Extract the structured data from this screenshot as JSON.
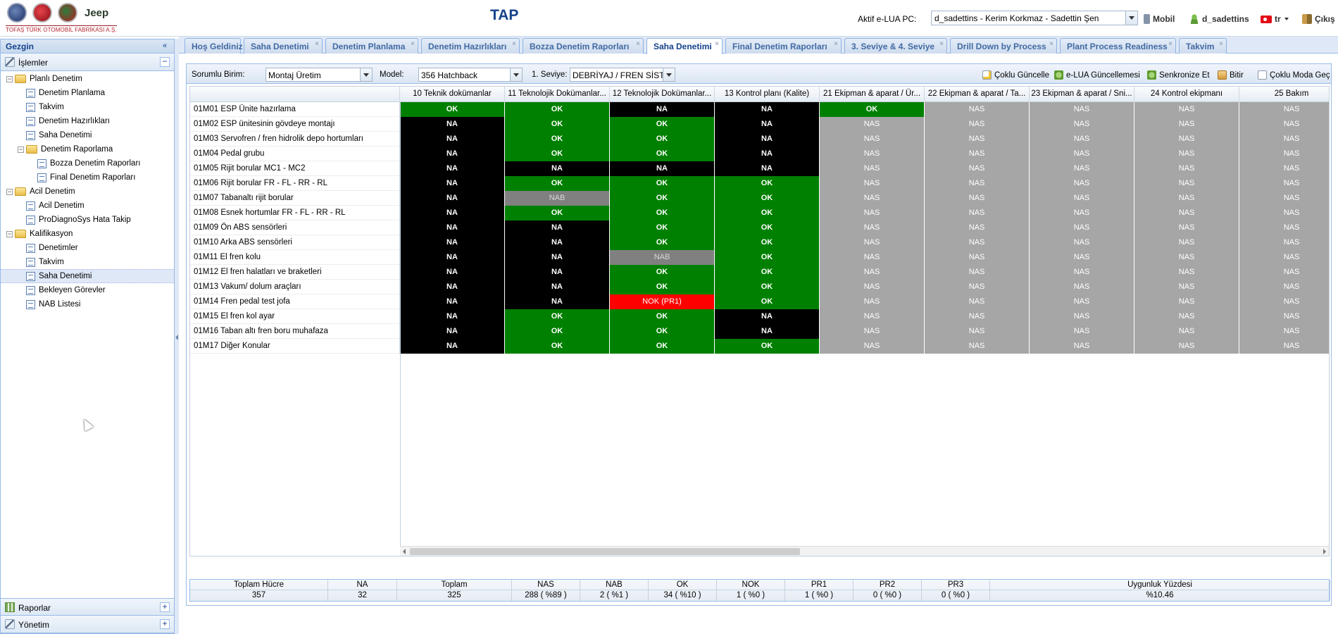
{
  "header": {
    "company": "TOFAŞ TÜRK OTOMOBİL FABRİKASI A.Ş.",
    "brand_jeep": "Jeep",
    "title": "TAP",
    "pc_label": "Aktif e-LUA PC:",
    "pc_value": "d_sadettins - Kerim Korkmaz - Sadettin Şen",
    "mobile": "Mobil",
    "user": "d_sadettins",
    "lang": "tr",
    "exit": "Çıkış"
  },
  "sidebar": {
    "title": "Gezgin",
    "section": "İşlemler",
    "tree": [
      {
        "label": "Planlı Denetim",
        "level": 0,
        "type": "folder"
      },
      {
        "label": "Denetim Planlama",
        "level": 1,
        "type": "leaf"
      },
      {
        "label": "Takvim",
        "level": 1,
        "type": "leaf"
      },
      {
        "label": "Denetim Hazırlıkları",
        "level": 1,
        "type": "leaf"
      },
      {
        "label": "Saha Denetimi",
        "level": 1,
        "type": "leaf"
      },
      {
        "label": "Denetim Raporlama",
        "level": 1,
        "type": "folder"
      },
      {
        "label": "Bozza Denetim Raporları",
        "level": 2,
        "type": "leaf"
      },
      {
        "label": "Final Denetim Raporları",
        "level": 2,
        "type": "leaf"
      },
      {
        "label": "Acil Denetim",
        "level": 0,
        "type": "folder"
      },
      {
        "label": "Acil Denetim",
        "level": 1,
        "type": "leaf"
      },
      {
        "label": "ProDiagnoSys Hata Takip",
        "level": 1,
        "type": "leaf"
      },
      {
        "label": "Kalifikasyon",
        "level": 0,
        "type": "folder"
      },
      {
        "label": "Denetimler",
        "level": 1,
        "type": "leaf"
      },
      {
        "label": "Takvim",
        "level": 1,
        "type": "leaf"
      },
      {
        "label": "Saha Denetimi",
        "level": 1,
        "type": "leaf",
        "selected": true
      },
      {
        "label": "Bekleyen Görevler",
        "level": 1,
        "type": "leaf"
      },
      {
        "label": "NAB Listesi",
        "level": 1,
        "type": "leaf"
      }
    ],
    "bottom": [
      "Raporlar",
      "Yönetim"
    ]
  },
  "tabs": [
    {
      "label": "Hoş Geldiniz",
      "closable": false
    },
    {
      "label": "Saha Denetimi",
      "closable": true
    },
    {
      "label": "Denetim Planlama",
      "closable": true
    },
    {
      "label": "Denetim Hazırlıkları",
      "closable": true
    },
    {
      "label": "Bozza Denetim Raporları",
      "closable": true
    },
    {
      "label": "Saha Denetimi",
      "closable": true,
      "active": true
    },
    {
      "label": "Final Denetim Raporları",
      "closable": true
    },
    {
      "label": "3. Seviye & 4. Seviye",
      "closable": true
    },
    {
      "label": "Drill Down by Process",
      "closable": true
    },
    {
      "label": "Plant Process Readiness",
      "closable": true
    },
    {
      "label": "Takvim",
      "closable": true
    }
  ],
  "toolbar": {
    "unit_label": "Sorumlu Birim:",
    "unit_value": "Montaj Üretim",
    "model_label": "Model:",
    "model_value": "356 Hatchback",
    "level_label": "1. Seviye:",
    "level_value": "DEBRİYAJ / FREN SİSTEMİ",
    "buttons": [
      "Çoklu Güncelle",
      "e-LUA Güncellemesi",
      "Senkronize Et",
      "Bitir",
      "Çoklu Moda Geç"
    ]
  },
  "grid": {
    "columns": [
      "10 Teknik dokümanlar",
      "11 Teknolojik Dokümanlar...",
      "12 Teknolojik Dokümanlar...",
      "13 Kontrol planı (Kalite)",
      "21 Ekipman & aparat / Ür...",
      "22 Ekipman & aparat / Ta...",
      "23 Ekipman & aparat / Sni...",
      "24 Kontrol ekipmanı",
      "25 Bakım"
    ],
    "rows": [
      {
        "label": "01M01 ESP Ünite hazırlama",
        "cells": [
          "OK",
          "OK",
          "NA",
          "NA",
          "OK",
          "NAS",
          "NAS",
          "NAS",
          "NAS"
        ]
      },
      {
        "label": "01M02 ESP ünitesinin gövdeye montajı",
        "cells": [
          "NA",
          "OK",
          "OK",
          "NA",
          "NAS",
          "NAS",
          "NAS",
          "NAS",
          "NAS"
        ]
      },
      {
        "label": "01M03 Servofren / fren hidrolik depo hortumları",
        "cells": [
          "NA",
          "OK",
          "OK",
          "NA",
          "NAS",
          "NAS",
          "NAS",
          "NAS",
          "NAS"
        ]
      },
      {
        "label": "01M04 Pedal grubu",
        "cells": [
          "NA",
          "OK",
          "OK",
          "NA",
          "NAS",
          "NAS",
          "NAS",
          "NAS",
          "NAS"
        ]
      },
      {
        "label": "01M05 Rijit borular MC1 - MC2",
        "cells": [
          "NA",
          "NA",
          "NA",
          "NA",
          "NAS",
          "NAS",
          "NAS",
          "NAS",
          "NAS"
        ]
      },
      {
        "label": "01M06 Rijit borular FR - FL - RR - RL",
        "cells": [
          "NA",
          "OK",
          "OK",
          "OK",
          "NAS",
          "NAS",
          "NAS",
          "NAS",
          "NAS"
        ]
      },
      {
        "label": "01M07 Tabanaltı rijit borular",
        "cells": [
          "NA",
          "NAB",
          "OK",
          "OK",
          "NAS",
          "NAS",
          "NAS",
          "NAS",
          "NAS"
        ]
      },
      {
        "label": "01M08 Esnek hortumlar FR - FL - RR - RL",
        "cells": [
          "NA",
          "OK",
          "OK",
          "OK",
          "NAS",
          "NAS",
          "NAS",
          "NAS",
          "NAS"
        ]
      },
      {
        "label": "01M09 Ön ABS sensörleri",
        "cells": [
          "NA",
          "NA",
          "OK",
          "OK",
          "NAS",
          "NAS",
          "NAS",
          "NAS",
          "NAS"
        ]
      },
      {
        "label": "01M10 Arka ABS sensörleri",
        "cells": [
          "NA",
          "NA",
          "OK",
          "OK",
          "NAS",
          "NAS",
          "NAS",
          "NAS",
          "NAS"
        ]
      },
      {
        "label": "01M11 El fren kolu",
        "cells": [
          "NA",
          "NA",
          "NAB",
          "OK",
          "NAS",
          "NAS",
          "NAS",
          "NAS",
          "NAS"
        ]
      },
      {
        "label": "01M12 El fren halatları ve braketleri",
        "cells": [
          "NA",
          "NA",
          "OK",
          "OK",
          "NAS",
          "NAS",
          "NAS",
          "NAS",
          "NAS"
        ]
      },
      {
        "label": "01M13 Vakum/ dolum araçları",
        "cells": [
          "NA",
          "NA",
          "OK",
          "OK",
          "NAS",
          "NAS",
          "NAS",
          "NAS",
          "NAS"
        ]
      },
      {
        "label": "01M14 Fren pedal test jofa",
        "cells": [
          "NA",
          "NA",
          "NOK (PR1)",
          "OK",
          "NAS",
          "NAS",
          "NAS",
          "NAS",
          "NAS"
        ]
      },
      {
        "label": "01M15 El fren kol ayar",
        "cells": [
          "NA",
          "OK",
          "OK",
          "NA",
          "NAS",
          "NAS",
          "NAS",
          "NAS",
          "NAS"
        ]
      },
      {
        "label": "01M16 Taban altı fren boru muhafaza",
        "cells": [
          "NA",
          "OK",
          "OK",
          "NA",
          "NAS",
          "NAS",
          "NAS",
          "NAS",
          "NAS"
        ]
      },
      {
        "label": "01M17 Diğer Konular",
        "cells": [
          "NA",
          "OK",
          "OK",
          "OK",
          "NAS",
          "NAS",
          "NAS",
          "NAS",
          "NAS"
        ]
      }
    ]
  },
  "summary": [
    {
      "header": "Toplam Hücre",
      "value": "357"
    },
    {
      "header": "NA",
      "value": "32"
    },
    {
      "header": "Toplam",
      "value": "325"
    },
    {
      "header": "NAS",
      "value": "288 ( %89 )"
    },
    {
      "header": "NAB",
      "value": "2 ( %1 )"
    },
    {
      "header": "OK",
      "value": "34 ( %10 )"
    },
    {
      "header": "NOK",
      "value": "1 ( %0 )"
    },
    {
      "header": "PR1",
      "value": "1 ( %0 )"
    },
    {
      "header": "PR2",
      "value": "0 ( %0 )"
    },
    {
      "header": "PR3",
      "value": "0 ( %0 )"
    },
    {
      "header": "Uygunluk Yüzdesi",
      "value": "%10.46"
    }
  ]
}
